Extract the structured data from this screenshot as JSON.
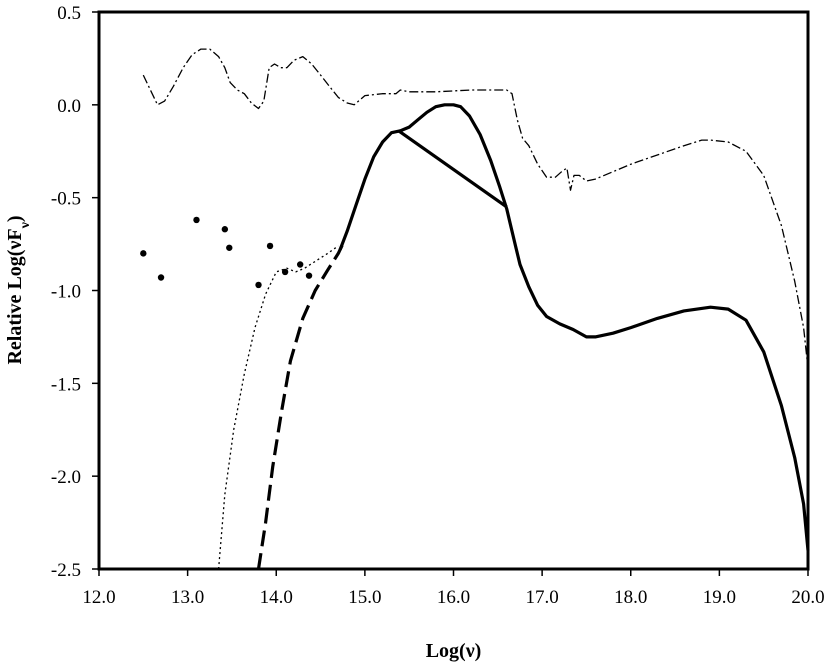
{
  "chart_data": {
    "type": "line",
    "title": "",
    "xlabel": "Log(ν)",
    "ylabel": {
      "main": "Relative Log(νF",
      "sub": "ν",
      "close": ")"
    },
    "xlim": [
      12.0,
      20.0
    ],
    "ylim": [
      -2.5,
      0.5
    ],
    "xticks": [
      "12.0",
      "13.0",
      "14.0",
      "15.0",
      "16.0",
      "17.0",
      "18.0",
      "19.0",
      "20.0"
    ],
    "yticks": [
      "0.5",
      "0.0",
      "-0.5",
      "-1.0",
      "-1.5",
      "-2.0",
      "-2.5"
    ],
    "grid": false,
    "legend": "none",
    "series": [
      {
        "style": "dash-dot",
        "points": [
          [
            12.5,
            0.16
          ],
          [
            12.58,
            0.08
          ],
          [
            12.66,
            0.0
          ],
          [
            12.74,
            0.02
          ],
          [
            12.84,
            0.1
          ],
          [
            12.95,
            0.2
          ],
          [
            13.05,
            0.27
          ],
          [
            13.15,
            0.3
          ],
          [
            13.25,
            0.3
          ],
          [
            13.35,
            0.26
          ],
          [
            13.42,
            0.2
          ],
          [
            13.48,
            0.12
          ],
          [
            13.56,
            0.08
          ],
          [
            13.64,
            0.06
          ],
          [
            13.72,
            0.01
          ],
          [
            13.8,
            -0.02
          ],
          [
            13.86,
            0.02
          ],
          [
            13.92,
            0.2
          ],
          [
            13.98,
            0.22
          ],
          [
            14.05,
            0.2
          ],
          [
            14.12,
            0.2
          ],
          [
            14.2,
            0.24
          ],
          [
            14.3,
            0.26
          ],
          [
            14.4,
            0.22
          ],
          [
            14.5,
            0.16
          ],
          [
            14.6,
            0.1
          ],
          [
            14.7,
            0.04
          ],
          [
            14.8,
            0.01
          ],
          [
            14.88,
            0.0
          ],
          [
            15.0,
            0.05
          ],
          [
            15.2,
            0.06
          ],
          [
            15.35,
            0.06
          ],
          [
            15.4,
            0.08
          ],
          [
            15.5,
            0.07
          ],
          [
            15.8,
            0.07
          ],
          [
            16.2,
            0.08
          ],
          [
            16.6,
            0.08
          ],
          [
            16.66,
            0.06
          ],
          [
            16.72,
            -0.08
          ],
          [
            16.78,
            -0.18
          ],
          [
            16.85,
            -0.22
          ],
          [
            16.95,
            -0.32
          ],
          [
            17.05,
            -0.39
          ],
          [
            17.15,
            -0.39
          ],
          [
            17.22,
            -0.36
          ],
          [
            17.28,
            -0.34
          ],
          [
            17.32,
            -0.46
          ],
          [
            17.36,
            -0.38
          ],
          [
            17.42,
            -0.38
          ],
          [
            17.5,
            -0.41
          ],
          [
            17.6,
            -0.4
          ],
          [
            17.8,
            -0.36
          ],
          [
            18.0,
            -0.32
          ],
          [
            18.3,
            -0.27
          ],
          [
            18.6,
            -0.22
          ],
          [
            18.8,
            -0.19
          ],
          [
            18.9,
            -0.19
          ],
          [
            19.1,
            -0.2
          ],
          [
            19.3,
            -0.25
          ],
          [
            19.5,
            -0.38
          ],
          [
            19.7,
            -0.65
          ],
          [
            19.85,
            -0.95
          ],
          [
            19.95,
            -1.2
          ],
          [
            20.0,
            -1.42
          ]
        ]
      },
      {
        "style": "solid",
        "points": [
          [
            14.72,
            -0.78
          ],
          [
            14.8,
            -0.68
          ],
          [
            14.9,
            -0.54
          ],
          [
            15.0,
            -0.4
          ],
          [
            15.1,
            -0.28
          ],
          [
            15.2,
            -0.2
          ],
          [
            15.3,
            -0.15
          ],
          [
            15.4,
            -0.14
          ],
          [
            15.5,
            -0.12
          ],
          [
            15.6,
            -0.08
          ],
          [
            15.7,
            -0.04
          ],
          [
            15.8,
            -0.01
          ],
          [
            15.9,
            0.0
          ],
          [
            16.0,
            0.0
          ],
          [
            16.08,
            -0.01
          ],
          [
            16.18,
            -0.06
          ],
          [
            16.3,
            -0.16
          ],
          [
            16.42,
            -0.3
          ],
          [
            16.52,
            -0.44
          ],
          [
            16.6,
            -0.56
          ],
          [
            16.65,
            -0.66
          ],
          [
            16.7,
            -0.76
          ],
          [
            16.75,
            -0.86
          ],
          [
            16.85,
            -0.98
          ],
          [
            16.95,
            -1.08
          ],
          [
            17.05,
            -1.14
          ],
          [
            17.2,
            -1.18
          ],
          [
            17.35,
            -1.21
          ],
          [
            17.5,
            -1.25
          ],
          [
            17.6,
            -1.25
          ],
          [
            17.8,
            -1.23
          ],
          [
            18.0,
            -1.2
          ],
          [
            18.3,
            -1.15
          ],
          [
            18.6,
            -1.11
          ],
          [
            18.9,
            -1.09
          ],
          [
            19.1,
            -1.1
          ],
          [
            19.3,
            -1.16
          ],
          [
            19.5,
            -1.33
          ],
          [
            19.7,
            -1.62
          ],
          [
            19.85,
            -1.9
          ],
          [
            19.95,
            -2.15
          ],
          [
            20.0,
            -2.4
          ]
        ]
      },
      {
        "style": "solid",
        "points": [
          [
            15.38,
            -0.14
          ],
          [
            16.6,
            -0.55
          ]
        ]
      },
      {
        "style": "dashed",
        "points": [
          [
            13.8,
            -2.5
          ],
          [
            13.88,
            -2.25
          ],
          [
            13.96,
            -1.95
          ],
          [
            14.06,
            -1.65
          ],
          [
            14.16,
            -1.38
          ],
          [
            14.3,
            -1.15
          ],
          [
            14.44,
            -1.0
          ],
          [
            14.58,
            -0.89
          ],
          [
            14.7,
            -0.8
          ],
          [
            14.76,
            -0.74
          ]
        ]
      },
      {
        "style": "dotted",
        "points": [
          [
            13.35,
            -2.5
          ],
          [
            13.42,
            -2.1
          ],
          [
            13.52,
            -1.75
          ],
          [
            13.64,
            -1.45
          ],
          [
            13.76,
            -1.2
          ],
          [
            13.88,
            -1.02
          ],
          [
            14.0,
            -0.9
          ],
          [
            14.12,
            -0.88
          ],
          [
            14.22,
            -0.9
          ],
          [
            14.32,
            -0.88
          ],
          [
            14.45,
            -0.84
          ],
          [
            14.58,
            -0.8
          ],
          [
            14.7,
            -0.76
          ]
        ]
      },
      {
        "style": "markers",
        "points": [
          [
            12.5,
            -0.8
          ],
          [
            12.7,
            -0.93
          ],
          [
            13.1,
            -0.62
          ],
          [
            13.42,
            -0.67
          ],
          [
            13.47,
            -0.77
          ],
          [
            13.8,
            -0.97
          ],
          [
            13.93,
            -0.76
          ],
          [
            14.1,
            -0.9
          ],
          [
            14.27,
            -0.86
          ],
          [
            14.37,
            -0.92
          ]
        ]
      }
    ]
  }
}
